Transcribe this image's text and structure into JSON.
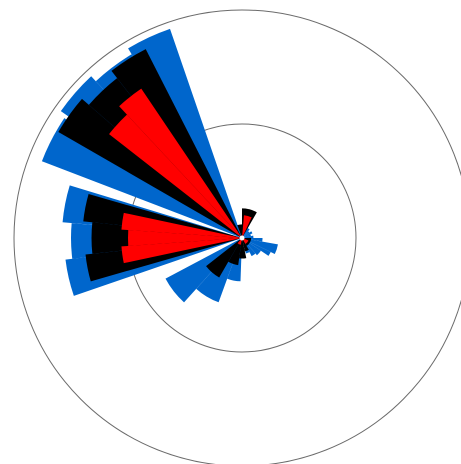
{
  "chart_data": {
    "type": "polar-bar",
    "title": "",
    "xlabel": "",
    "ylabel": "",
    "rlim": [
      0,
      1
    ],
    "grid": true,
    "grid_rings": [
      0.5,
      1.0
    ],
    "legend": "none",
    "angular_unit": "degrees",
    "angle_zero": "east",
    "angle_direction": "counterclockwise",
    "series": [
      {
        "color": "#0066cc",
        "wedges": [
          {
            "start": 109,
            "end": 121,
            "value": 0.97
          },
          {
            "start": 121,
            "end": 133,
            "value": 0.94
          },
          {
            "start": 133,
            "end": 145,
            "value": 0.97
          },
          {
            "start": 146,
            "end": 159,
            "value": 0.94
          },
          {
            "start": 163,
            "end": 175,
            "value": 0.79
          },
          {
            "start": 175,
            "end": 187,
            "value": 0.75
          },
          {
            "start": 187,
            "end": 199,
            "value": 0.78
          },
          {
            "start": 208,
            "end": 228,
            "value": 0.38
          },
          {
            "start": 228,
            "end": 250,
            "value": 0.3
          },
          {
            "start": 250,
            "end": 268,
            "value": 0.19
          },
          {
            "start": 284,
            "end": 298,
            "value": 0.07
          },
          {
            "start": 298,
            "end": 311,
            "value": 0.09
          },
          {
            "start": 311,
            "end": 326,
            "value": 0.1
          },
          {
            "start": 326,
            "end": 334,
            "value": 0.14
          },
          {
            "start": 334,
            "end": 350,
            "value": 0.16
          },
          {
            "start": 350,
            "end": 360,
            "value": 0.09
          },
          {
            "start": 0,
            "end": 12,
            "value": 0.05
          },
          {
            "start": 12,
            "end": 24,
            "value": 0.04
          },
          {
            "start": 24,
            "end": 36,
            "value": 0.05
          },
          {
            "start": 36,
            "end": 48,
            "value": 0.04
          },
          {
            "start": 48,
            "end": 60,
            "value": 0.05
          },
          {
            "start": 60,
            "end": 72,
            "value": 0.07
          },
          {
            "start": 72,
            "end": 84,
            "value": 0.06
          },
          {
            "start": 84,
            "end": 96,
            "value": 0.05
          }
        ]
      },
      {
        "color": "#000000",
        "wedges": [
          {
            "start": 117,
            "end": 128,
            "value": 0.93
          },
          {
            "start": 128,
            "end": 139,
            "value": 0.89
          },
          {
            "start": 139,
            "end": 150,
            "value": 0.93
          },
          {
            "start": 164,
            "end": 174,
            "value": 0.7
          },
          {
            "start": 174,
            "end": 186,
            "value": 0.66
          },
          {
            "start": 186,
            "end": 196,
            "value": 0.69
          },
          {
            "start": 218,
            "end": 240,
            "value": 0.2
          },
          {
            "start": 240,
            "end": 262,
            "value": 0.12
          },
          {
            "start": 262,
            "end": 282,
            "value": 0.09
          },
          {
            "start": 282,
            "end": 300,
            "value": 0.06
          },
          {
            "start": 300,
            "end": 330,
            "value": 0.04
          },
          {
            "start": 330,
            "end": 360,
            "value": 0.04
          },
          {
            "start": 60,
            "end": 90,
            "value": 0.13
          },
          {
            "start": 90,
            "end": 110,
            "value": 0.06
          }
        ]
      },
      {
        "color": "#ff0000",
        "wedges": [
          {
            "start": 124,
            "end": 133,
            "value": 0.79
          },
          {
            "start": 133,
            "end": 142,
            "value": 0.74
          },
          {
            "start": 168,
            "end": 176,
            "value": 0.53
          },
          {
            "start": 176,
            "end": 184,
            "value": 0.5
          },
          {
            "start": 184,
            "end": 192,
            "value": 0.53
          },
          {
            "start": 65,
            "end": 85,
            "value": 0.1
          },
          {
            "start": 230,
            "end": 260,
            "value": 0.03
          },
          {
            "start": 300,
            "end": 340,
            "value": 0.03
          }
        ]
      }
    ]
  }
}
